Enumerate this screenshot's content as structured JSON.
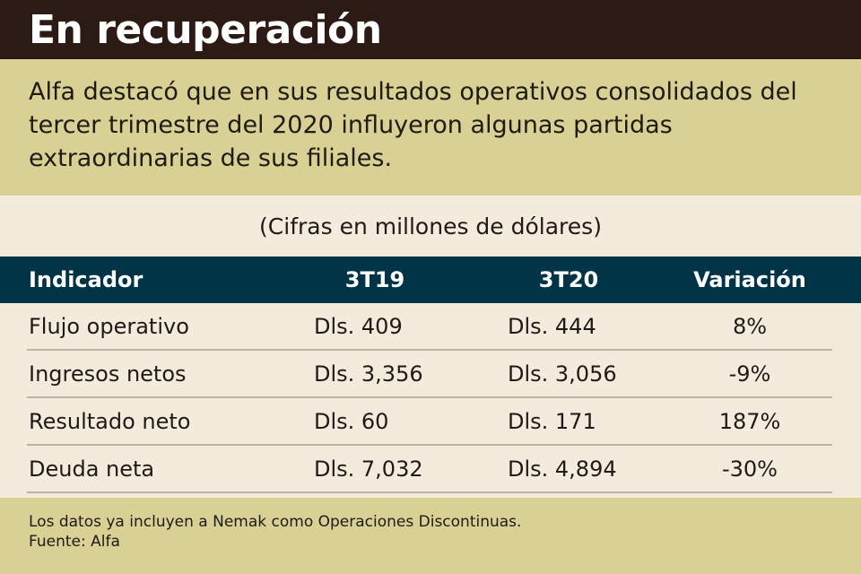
{
  "title": "En recuperación",
  "intro": "Alfa destacó que en sus resultados operativos consolidados del tercer trimestre del 2020 influyeron algunas partidas extraordinarias de sus filiales.",
  "subtitle": "(Cifras en millones de dólares)",
  "table": {
    "headers": [
      "Indicador",
      "3T19",
      "3T20",
      "Variación"
    ],
    "rows": [
      [
        "Flujo operativo",
        "Dls. 409",
        "Dls. 444",
        "8%"
      ],
      [
        "Ingresos netos",
        "Dls. 3,356",
        "Dls. 3,056",
        "-9%"
      ],
      [
        "Resultado neto",
        "Dls. 60",
        "Dls. 171",
        "187%"
      ],
      [
        "Deuda neta",
        "Dls. 7,032",
        "Dls. 4,894",
        "-30%"
      ]
    ]
  },
  "footer": {
    "note": "Los datos ya incluyen a Nemak como Operaciones Discontinuas.",
    "source": "Fuente: Alfa"
  }
}
